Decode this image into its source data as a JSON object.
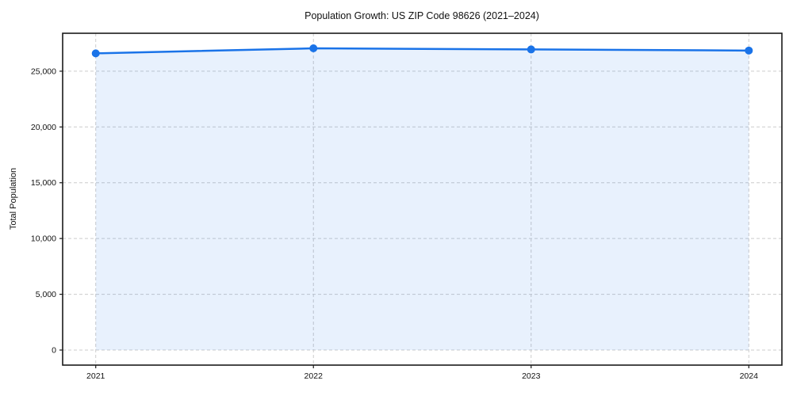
{
  "figure": {
    "background_color": "#ffffff",
    "spine_color": "#1a1a1a",
    "text_color": "#111111"
  },
  "chart_data": {
    "type": "line",
    "title": "Population Growth: US ZIP Code 98626 (2021–2024)",
    "xlabel": "",
    "ylabel": "Total Population",
    "categories": [
      "2021",
      "2022",
      "2023",
      "2024"
    ],
    "series": [
      {
        "name": "Total Population",
        "values": [
          26600,
          27050,
          26950,
          26850
        ]
      }
    ],
    "y_ticks": [
      0,
      5000,
      10000,
      15000,
      20000,
      25000
    ],
    "y_tick_labels": [
      "0",
      "5,000",
      "10,000",
      "15,000",
      "20,000",
      "25,000"
    ],
    "ylim": [
      -1350,
      28400
    ],
    "x_margin_fraction": 0.046,
    "grid": "dashed",
    "legend_position": "none",
    "line_color": "#1a73e8",
    "marker": "circle",
    "fill_color": "rgba(26,115,232,0.10)",
    "grid_color": "#cccccc"
  }
}
